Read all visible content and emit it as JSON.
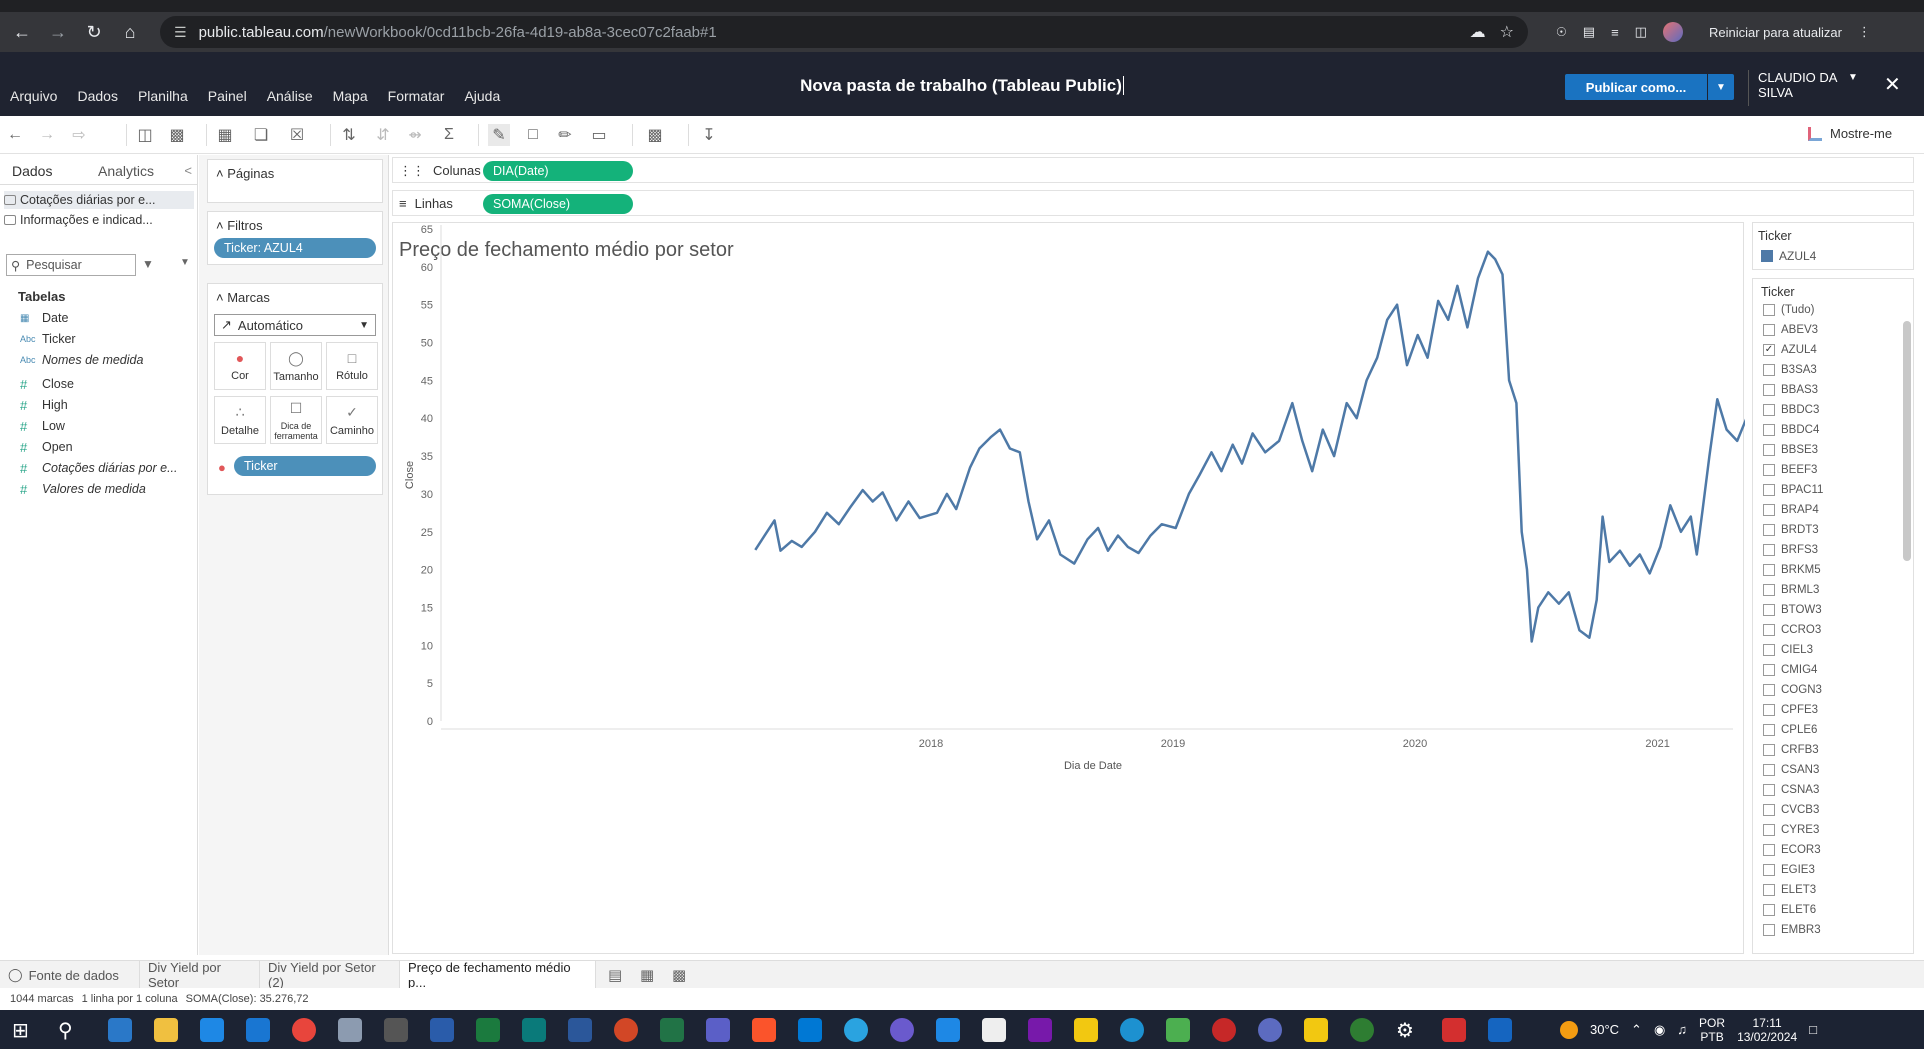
{
  "browser": {
    "url_host": "public.tableau.com",
    "url_path": "/newWorkbook/0cd11bcb-26fa-4d19-ab8a-3cec07c2faab#1",
    "update_label": "Reiniciar para atualizar"
  },
  "app": {
    "menu": [
      "Arquivo",
      "Dados",
      "Planilha",
      "Painel",
      "Análise",
      "Mapa",
      "Formatar",
      "Ajuda"
    ],
    "title": "Nova pasta de trabalho (Tableau Public)",
    "publish_label": "Publicar como...",
    "user_name": "CLAUDIO DA SILVA",
    "show_me_label": "Mostre-me"
  },
  "data_pane": {
    "tab_data": "Dados",
    "tab_analytics": "Analytics",
    "sources": [
      "Cotações diárias por e...",
      "Informações e indicad..."
    ],
    "search_placeholder": "Pesquisar",
    "tables_label": "Tabelas",
    "fields": [
      {
        "name": "Date",
        "type": "date"
      },
      {
        "name": "Ticker",
        "type": "abc"
      },
      {
        "name": "Nomes de medida",
        "type": "abc"
      },
      {
        "name": "Close",
        "type": "num"
      },
      {
        "name": "High",
        "type": "num"
      },
      {
        "name": "Low",
        "type": "num"
      },
      {
        "name": "Open",
        "type": "num"
      },
      {
        "name": "Cotações diárias por e...",
        "type": "num"
      },
      {
        "name": "Valores de medida",
        "type": "num"
      }
    ]
  },
  "shelves": {
    "pages_label": "Páginas",
    "filters_label": "Filtros",
    "filter_pill": "Ticker: AZUL4",
    "marks_label": "Marcas",
    "mark_type": "Automático",
    "mark_buttons": [
      "Cor",
      "Tamanho",
      "Rótulo",
      "Detalhe",
      "Dica de ferramenta",
      "Caminho"
    ],
    "marks_pill": "Ticker",
    "columns_label": "Colunas",
    "columns_pill": "DIA(Date)",
    "rows_label": "Linhas",
    "rows_pill": "SOMA(Close)"
  },
  "legend": {
    "title": "Ticker",
    "item": "AZUL4",
    "color": "#4e79a7"
  },
  "ticker_filter": {
    "title": "Ticker",
    "items": [
      {
        "label": "(Tudo)",
        "checked": false
      },
      {
        "label": "ABEV3",
        "checked": false
      },
      {
        "label": "AZUL4",
        "checked": true
      },
      {
        "label": "B3SA3",
        "checked": false
      },
      {
        "label": "BBAS3",
        "checked": false
      },
      {
        "label": "BBDC3",
        "checked": false
      },
      {
        "label": "BBDC4",
        "checked": false
      },
      {
        "label": "BBSE3",
        "checked": false
      },
      {
        "label": "BEEF3",
        "checked": false
      },
      {
        "label": "BPAC11",
        "checked": false
      },
      {
        "label": "BRAP4",
        "checked": false
      },
      {
        "label": "BRDT3",
        "checked": false
      },
      {
        "label": "BRFS3",
        "checked": false
      },
      {
        "label": "BRKM5",
        "checked": false
      },
      {
        "label": "BRML3",
        "checked": false
      },
      {
        "label": "BTOW3",
        "checked": false
      },
      {
        "label": "CCRO3",
        "checked": false
      },
      {
        "label": "CIEL3",
        "checked": false
      },
      {
        "label": "CMIG4",
        "checked": false
      },
      {
        "label": "COGN3",
        "checked": false
      },
      {
        "label": "CPFE3",
        "checked": false
      },
      {
        "label": "CPLE6",
        "checked": false
      },
      {
        "label": "CRFB3",
        "checked": false
      },
      {
        "label": "CSAN3",
        "checked": false
      },
      {
        "label": "CSNA3",
        "checked": false
      },
      {
        "label": "CVCB3",
        "checked": false
      },
      {
        "label": "CYRE3",
        "checked": false
      },
      {
        "label": "ECOR3",
        "checked": false
      },
      {
        "label": "EGIE3",
        "checked": false
      },
      {
        "label": "ELET3",
        "checked": false
      },
      {
        "label": "ELET6",
        "checked": false
      },
      {
        "label": "EMBR3",
        "checked": false
      }
    ]
  },
  "sheets": {
    "data_source": "Fonte de dados",
    "tabs": [
      "Div Yield por Setor",
      "Div Yield por Setor (2)",
      "Preço de fechamento médio p..."
    ]
  },
  "status": {
    "marks": "1044 marcas",
    "rows_cols": "1 linha por 1 coluna",
    "sum": "SOMA(Close): 35.276,72"
  },
  "taskbar": {
    "temp": "30°C",
    "lang1": "POR",
    "lang2": "PTB",
    "time": "17:11",
    "date": "13/02/2024"
  },
  "chart_data": {
    "type": "line",
    "title": "Preço de fechamento médio por setor",
    "xlabel": "Dia de Date",
    "ylabel": "Close",
    "ylim": [
      0,
      65
    ],
    "yticks": [
      0,
      5,
      10,
      15,
      20,
      25,
      30,
      35,
      40,
      45,
      50,
      55,
      60,
      65
    ],
    "xticks": [
      "2018",
      "2019",
      "2020",
      "2021"
    ],
    "series": [
      {
        "name": "AZUL4",
        "color": "#4e79a7",
        "points": [
          [
            "2017-04-11",
            22.6
          ],
          [
            "2017-04-25",
            24.5
          ],
          [
            "2017-05-10",
            26.5
          ],
          [
            "2017-05-19",
            22.5
          ],
          [
            "2017-06-05",
            23.8
          ],
          [
            "2017-06-20",
            23.0
          ],
          [
            "2017-07-10",
            25.0
          ],
          [
            "2017-07-28",
            27.5
          ],
          [
            "2017-08-15",
            26.0
          ],
          [
            "2017-09-01",
            28.2
          ],
          [
            "2017-09-20",
            30.5
          ],
          [
            "2017-10-05",
            29.0
          ],
          [
            "2017-10-20",
            30.2
          ],
          [
            "2017-11-10",
            26.5
          ],
          [
            "2017-11-28",
            29.0
          ],
          [
            "2017-12-15",
            26.8
          ],
          [
            "2018-01-10",
            27.5
          ],
          [
            "2018-01-25",
            30.0
          ],
          [
            "2018-02-08",
            28.0
          ],
          [
            "2018-03-01",
            33.5
          ],
          [
            "2018-03-15",
            36.0
          ],
          [
            "2018-04-01",
            37.5
          ],
          [
            "2018-04-15",
            38.5
          ],
          [
            "2018-04-30",
            36.0
          ],
          [
            "2018-05-15",
            35.5
          ],
          [
            "2018-05-28",
            29.0
          ],
          [
            "2018-06-10",
            24.0
          ],
          [
            "2018-06-28",
            26.5
          ],
          [
            "2018-07-15",
            22.0
          ],
          [
            "2018-08-05",
            20.8
          ],
          [
            "2018-08-25",
            24.0
          ],
          [
            "2018-09-10",
            25.5
          ],
          [
            "2018-09-25",
            22.5
          ],
          [
            "2018-10-10",
            24.5
          ],
          [
            "2018-10-25",
            23.0
          ],
          [
            "2018-11-10",
            22.2
          ],
          [
            "2018-11-28",
            24.5
          ],
          [
            "2018-12-15",
            26.0
          ],
          [
            "2019-01-05",
            25.5
          ],
          [
            "2019-01-25",
            30.0
          ],
          [
            "2019-02-10",
            32.5
          ],
          [
            "2019-02-28",
            35.5
          ],
          [
            "2019-03-15",
            33.0
          ],
          [
            "2019-04-01",
            36.5
          ],
          [
            "2019-04-15",
            34.0
          ],
          [
            "2019-05-01",
            38.0
          ],
          [
            "2019-05-20",
            35.5
          ],
          [
            "2019-06-10",
            37.0
          ],
          [
            "2019-06-30",
            42.0
          ],
          [
            "2019-07-15",
            37.0
          ],
          [
            "2019-07-30",
            33.0
          ],
          [
            "2019-08-15",
            38.5
          ],
          [
            "2019-09-01",
            35.0
          ],
          [
            "2019-09-20",
            42.0
          ],
          [
            "2019-10-05",
            40.0
          ],
          [
            "2019-10-20",
            45.0
          ],
          [
            "2019-11-05",
            48.0
          ],
          [
            "2019-11-20",
            53.0
          ],
          [
            "2019-12-05",
            55.0
          ],
          [
            "2019-12-20",
            47.0
          ],
          [
            "2020-01-05",
            51.0
          ],
          [
            "2020-01-20",
            48.0
          ],
          [
            "2020-02-05",
            55.5
          ],
          [
            "2020-02-20",
            53.0
          ],
          [
            "2020-03-05",
            57.5
          ],
          [
            "2020-03-20",
            52.0
          ],
          [
            "2020-04-05",
            58.5
          ],
          [
            "2020-04-20",
            62.0
          ],
          [
            "2020-05-01",
            61.0
          ],
          [
            "2020-05-12",
            59.0
          ],
          [
            "2020-05-22",
            45.0
          ],
          [
            "2020-06-02",
            42.0
          ],
          [
            "2020-06-10",
            25.0
          ],
          [
            "2020-06-18",
            20.0
          ],
          [
            "2020-06-25",
            10.5
          ],
          [
            "2020-07-05",
            15.0
          ],
          [
            "2020-07-20",
            17.0
          ],
          [
            "2020-08-05",
            15.5
          ],
          [
            "2020-08-20",
            17.0
          ],
          [
            "2020-09-05",
            12.0
          ],
          [
            "2020-09-20",
            11.0
          ],
          [
            "2020-10-01",
            16.0
          ],
          [
            "2020-10-10",
            27.0
          ],
          [
            "2020-10-20",
            21.0
          ],
          [
            "2020-11-05",
            22.5
          ],
          [
            "2020-11-20",
            20.5
          ],
          [
            "2020-12-05",
            22.0
          ],
          [
            "2020-12-20",
            19.5
          ],
          [
            "2021-01-05",
            23.0
          ],
          [
            "2021-01-20",
            28.5
          ],
          [
            "2021-02-05",
            25.0
          ],
          [
            "2021-02-20",
            27.0
          ],
          [
            "2021-03-01",
            22.0
          ],
          [
            "2021-03-10",
            28.0
          ],
          [
            "2021-03-20",
            35.0
          ],
          [
            "2021-04-01",
            42.5
          ],
          [
            "2021-04-15",
            38.5
          ],
          [
            "2021-05-01",
            37.0
          ],
          [
            "2021-05-15",
            40.0
          ],
          [
            "2021-06-01",
            44.5
          ],
          [
            "2021-06-15",
            45.0
          ],
          [
            "2021-07-01",
            35.5
          ],
          [
            "2021-07-15",
            41.0
          ],
          [
            "2021-08-01",
            36.5
          ],
          [
            "2021-08-15",
            40.0
          ],
          [
            "2021-09-01",
            38.0
          ],
          [
            "2021-09-15",
            41.0
          ],
          [
            "2021-10-01",
            48.5
          ],
          [
            "2021-10-15",
            46.0
          ],
          [
            "2021-10-28",
            44.0
          ]
        ]
      }
    ]
  }
}
